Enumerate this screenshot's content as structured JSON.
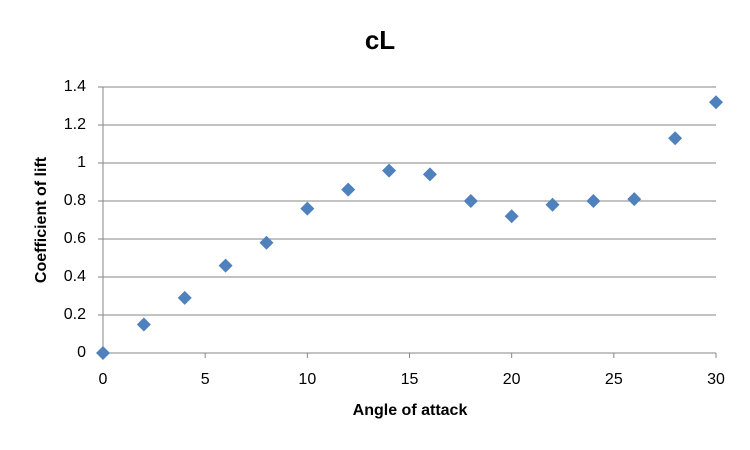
{
  "chart_data": {
    "type": "scatter",
    "title": "cL",
    "x_label": "Angle of attack",
    "y_label": "Coefficient of lift",
    "x": [
      0,
      2,
      4,
      6,
      8,
      10,
      12,
      14,
      16,
      18,
      20,
      22,
      24,
      26,
      28,
      30
    ],
    "values": [
      0,
      0.15,
      0.29,
      0.46,
      0.58,
      0.76,
      0.86,
      0.96,
      0.94,
      0.8,
      0.72,
      0.78,
      0.8,
      0.81,
      1.13,
      1.32
    ],
    "color": "#4f81bd",
    "xlim": [
      0,
      30
    ],
    "xticks": [
      0,
      5,
      10,
      15,
      20,
      25,
      30
    ],
    "ylim": [
      0,
      1.4
    ],
    "yticks": [
      0,
      0.2,
      0.4,
      0.6,
      0.8,
      1,
      1.2,
      1.4
    ],
    "grid": true
  }
}
